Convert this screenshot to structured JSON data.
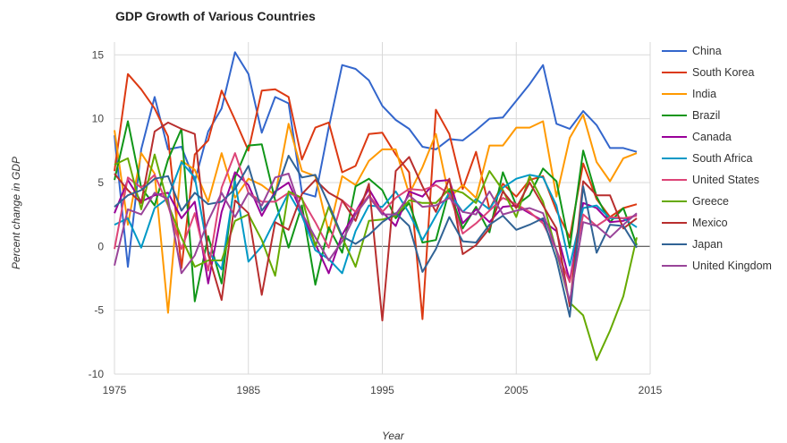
{
  "chart_data": {
    "type": "line",
    "title": "GDP Growth of Various Countries",
    "xlabel": "Year",
    "ylabel": "Percent change in GDP",
    "xlim": [
      1975,
      2015
    ],
    "ylim": [
      -10,
      16
    ],
    "xticks": [
      "1975",
      "1985",
      "1995",
      "2005",
      "2015"
    ],
    "yticks": [
      "-10",
      "-5",
      "0",
      "5",
      "10",
      "15"
    ],
    "grid": true,
    "legend_position": "right",
    "x": [
      1975,
      1976,
      1977,
      1978,
      1979,
      1980,
      1981,
      1982,
      1983,
      1984,
      1985,
      1986,
      1987,
      1988,
      1989,
      1990,
      1991,
      1992,
      1993,
      1994,
      1995,
      1996,
      1997,
      1998,
      1999,
      2000,
      2001,
      2002,
      2003,
      2004,
      2005,
      2006,
      2007,
      2008,
      2009,
      2010,
      2011,
      2012,
      2013,
      2014
    ],
    "series": [
      {
        "name": "China",
        "color": "#3366cc",
        "values": [
          8.7,
          -1.6,
          7.6,
          11.7,
          7.6,
          7.8,
          5.1,
          9.0,
          10.8,
          15.2,
          13.5,
          8.9,
          11.7,
          11.2,
          4.2,
          3.9,
          9.3,
          14.2,
          13.9,
          13.0,
          11.0,
          9.9,
          9.2,
          7.8,
          7.6,
          8.4,
          8.3,
          9.1,
          10.0,
          10.1,
          11.4,
          12.7,
          14.2,
          9.6,
          9.2,
          10.6,
          9.5,
          7.7,
          7.7,
          7.4
        ]
      },
      {
        "name": "South Korea",
        "color": "#dc3912",
        "values": [
          5.9,
          13.5,
          12.3,
          10.8,
          8.6,
          -1.7,
          7.2,
          8.3,
          12.2,
          9.9,
          7.5,
          12.2,
          12.3,
          11.7,
          6.8,
          9.3,
          9.7,
          5.8,
          6.3,
          8.8,
          8.9,
          7.2,
          5.8,
          -5.7,
          10.7,
          8.8,
          4.5,
          7.4,
          2.9,
          4.9,
          3.9,
          5.2,
          5.5,
          2.8,
          0.7,
          6.5,
          3.7,
          2.3,
          3.0,
          3.3
        ]
      },
      {
        "name": "India",
        "color": "#ff9900",
        "values": [
          9.1,
          1.7,
          7.3,
          5.7,
          -5.2,
          6.7,
          6.0,
          3.5,
          7.3,
          3.8,
          5.3,
          4.8,
          4.0,
          9.6,
          5.9,
          5.5,
          1.1,
          5.5,
          4.8,
          6.7,
          7.6,
          7.6,
          4.1,
          6.2,
          8.8,
          3.8,
          4.8,
          3.8,
          7.9,
          7.9,
          9.3,
          9.3,
          9.8,
          3.9,
          8.5,
          10.3,
          6.6,
          5.1,
          6.9,
          7.3
        ]
      },
      {
        "name": "Brazil",
        "color": "#109618",
        "values": [
          5.2,
          9.8,
          4.6,
          3.2,
          6.8,
          9.2,
          -4.3,
          0.8,
          -2.9,
          5.4,
          7.9,
          8.0,
          3.6,
          -0.1,
          3.2,
          -3.0,
          1.5,
          -0.5,
          4.7,
          5.3,
          4.4,
          2.2,
          3.4,
          0.3,
          0.5,
          4.4,
          1.4,
          3.1,
          1.1,
          5.8,
          3.2,
          4.0,
          6.1,
          5.1,
          -0.1,
          7.5,
          3.9,
          1.9,
          3.0,
          0.1
        ]
      },
      {
        "name": "Canada",
        "color": "#990099",
        "values": [
          2.6,
          5.2,
          3.5,
          4.0,
          4.2,
          2.2,
          3.5,
          -2.9,
          2.7,
          5.8,
          4.8,
          2.4,
          4.3,
          5.0,
          2.6,
          0.2,
          -2.1,
          0.9,
          2.7,
          4.5,
          2.7,
          1.6,
          4.3,
          3.9,
          5.1,
          5.2,
          1.8,
          2.9,
          1.9,
          3.1,
          3.2,
          2.6,
          2.0,
          1.2,
          -2.7,
          3.4,
          3.0,
          1.9,
          2.0,
          2.5
        ]
      },
      {
        "name": "South Africa",
        "color": "#0099c6",
        "values": [
          1.7,
          2.2,
          -0.1,
          3.0,
          3.8,
          6.6,
          5.4,
          -0.4,
          -1.8,
          5.1,
          -1.2,
          0.0,
          2.1,
          4.2,
          2.4,
          -0.3,
          -1.0,
          -2.1,
          1.2,
          3.2,
          3.1,
          4.3,
          2.6,
          0.5,
          2.4,
          4.2,
          2.7,
          3.7,
          2.9,
          4.6,
          5.3,
          5.6,
          5.4,
          3.2,
          -1.5,
          3.0,
          3.2,
          2.2,
          2.2,
          1.5
        ]
      },
      {
        "name": "United States",
        "color": "#dd4477",
        "values": [
          -0.2,
          5.4,
          4.6,
          5.6,
          3.2,
          -0.2,
          2.6,
          -1.9,
          4.6,
          7.3,
          4.2,
          3.5,
          3.5,
          4.2,
          3.7,
          1.9,
          -0.1,
          3.6,
          2.7,
          4.0,
          2.7,
          3.8,
          4.5,
          4.4,
          4.8,
          4.1,
          1.0,
          1.8,
          2.8,
          3.8,
          3.3,
          2.7,
          1.8,
          -0.3,
          -2.8,
          2.5,
          1.6,
          2.3,
          2.2,
          2.4
        ]
      },
      {
        "name": "Greece",
        "color": "#66aa00",
        "values": [
          6.4,
          6.9,
          2.9,
          7.2,
          3.3,
          0.7,
          -1.6,
          -1.1,
          -1.1,
          2.0,
          2.5,
          0.5,
          -2.3,
          4.3,
          3.8,
          0.0,
          3.1,
          0.7,
          -1.6,
          2.0,
          2.1,
          2.4,
          3.6,
          3.4,
          3.4,
          4.5,
          4.2,
          3.4,
          5.9,
          4.4,
          2.3,
          5.5,
          3.5,
          -0.4,
          -4.4,
          -5.4,
          -8.9,
          -6.6,
          -3.9,
          0.7
        ]
      },
      {
        "name": "Mexico",
        "color": "#b82e2e",
        "values": [
          5.7,
          4.4,
          3.4,
          9.0,
          9.7,
          9.2,
          8.8,
          -0.6,
          -4.2,
          3.6,
          2.6,
          -3.8,
          1.9,
          1.3,
          4.1,
          5.2,
          4.2,
          3.6,
          2.0,
          4.9,
          -5.8,
          5.9,
          7.0,
          4.7,
          2.7,
          5.3,
          -0.6,
          0.1,
          1.4,
          4.3,
          3.0,
          5.0,
          3.2,
          1.4,
          -4.7,
          5.1,
          4.0,
          4.0,
          1.4,
          2.2
        ]
      },
      {
        "name": "Japan",
        "color": "#316395",
        "values": [
          3.1,
          4.0,
          4.4,
          5.3,
          5.5,
          2.8,
          4.2,
          3.3,
          3.5,
          4.5,
          6.3,
          2.8,
          4.1,
          7.1,
          5.4,
          5.6,
          3.3,
          0.8,
          0.2,
          0.9,
          1.9,
          2.6,
          1.6,
          -2.0,
          -0.2,
          2.3,
          0.4,
          0.3,
          1.7,
          2.4,
          1.3,
          1.7,
          2.2,
          -1.0,
          -5.5,
          4.7,
          -0.5,
          1.7,
          1.6,
          -0.1
        ]
      },
      {
        "name": "United Kingdom",
        "color": "#994499",
        "values": [
          -1.5,
          2.9,
          2.5,
          4.2,
          3.7,
          -2.1,
          -0.7,
          2.0,
          4.2,
          2.3,
          4.2,
          3.2,
          5.4,
          5.7,
          2.6,
          0.7,
          -1.1,
          0.4,
          2.5,
          3.9,
          2.5,
          2.5,
          4.0,
          3.1,
          3.2,
          3.8,
          2.7,
          2.5,
          4.3,
          2.5,
          2.8,
          3.0,
          2.6,
          -0.3,
          -4.3,
          1.9,
          1.6,
          0.7,
          1.7,
          2.6
        ]
      }
    ]
  }
}
